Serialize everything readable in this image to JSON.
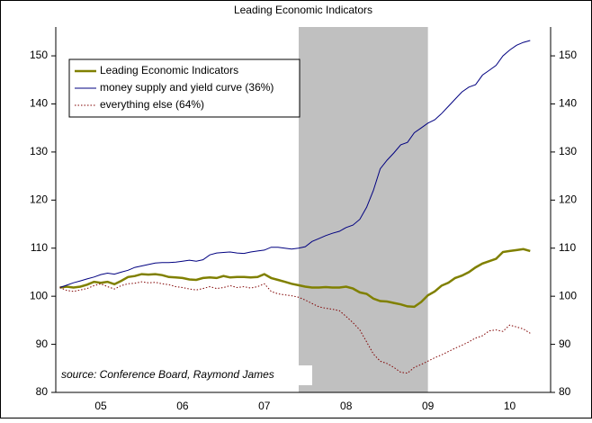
{
  "chart_data": {
    "type": "line",
    "title": "Leading Economic Indicators",
    "source_note": "source: Conference Board, Raymond James",
    "x": [
      2005.0,
      2005.083,
      2005.167,
      2005.25,
      2005.333,
      2005.417,
      2005.5,
      2005.583,
      2005.667,
      2005.75,
      2005.833,
      2005.917,
      2006.0,
      2006.083,
      2006.167,
      2006.25,
      2006.333,
      2006.417,
      2006.5,
      2006.583,
      2006.667,
      2006.75,
      2006.833,
      2006.917,
      2007.0,
      2007.083,
      2007.167,
      2007.25,
      2007.333,
      2007.417,
      2007.5,
      2007.583,
      2007.667,
      2007.75,
      2007.833,
      2007.917,
      2008.0,
      2008.083,
      2008.167,
      2008.25,
      2008.333,
      2008.417,
      2008.5,
      2008.583,
      2008.667,
      2008.75,
      2008.833,
      2008.917,
      2009.0,
      2009.083,
      2009.167,
      2009.25,
      2009.333,
      2009.417,
      2009.5,
      2009.583,
      2009.667,
      2009.75,
      2009.833,
      2009.917,
      2010.0,
      2010.083,
      2010.167,
      2010.25,
      2010.333,
      2010.417,
      2010.5,
      2010.583,
      2010.667,
      2010.75
    ],
    "series": [
      {
        "name": "Leading Economic Indicators",
        "color": "#808000",
        "style": "solid",
        "width": 2.5,
        "values": [
          101.8,
          102.0,
          101.8,
          102.0,
          102.4,
          103.0,
          102.8,
          103.0,
          102.5,
          103.2,
          104.0,
          104.2,
          104.6,
          104.5,
          104.6,
          104.4,
          104.0,
          103.9,
          103.8,
          103.5,
          103.4,
          103.8,
          103.9,
          103.8,
          104.2,
          103.9,
          104.0,
          104.0,
          103.9,
          104.0,
          104.6,
          103.8,
          103.4,
          103.0,
          102.6,
          102.3,
          102.0,
          101.8,
          101.8,
          101.9,
          101.8,
          101.8,
          102.0,
          101.6,
          100.8,
          100.5,
          99.5,
          99.0,
          98.9,
          98.6,
          98.3,
          97.9,
          97.8,
          98.8,
          100.2,
          101.0,
          102.2,
          102.8,
          103.8,
          104.3,
          105.0,
          106.0,
          106.8,
          107.3,
          107.8,
          109.2,
          109.4,
          109.6,
          109.8,
          109.4
        ]
      },
      {
        "name": "money supply and yield curve (36%)",
        "color": "#000080",
        "style": "solid",
        "width": 1,
        "values": [
          101.8,
          102.3,
          102.8,
          103.2,
          103.6,
          104.0,
          104.5,
          104.8,
          104.6,
          105.0,
          105.4,
          106.0,
          106.3,
          106.6,
          106.9,
          107.0,
          107.0,
          107.1,
          107.3,
          107.5,
          107.3,
          107.6,
          108.6,
          109.0,
          109.1,
          109.2,
          109.0,
          108.9,
          109.2,
          109.4,
          109.6,
          110.2,
          110.2,
          110.0,
          109.8,
          110.0,
          110.3,
          111.4,
          112.0,
          112.6,
          113.1,
          113.5,
          114.3,
          114.8,
          116.0,
          118.5,
          122.0,
          126.5,
          128.3,
          129.8,
          131.5,
          132.0,
          134.0,
          135.0,
          136.0,
          136.7,
          138.0,
          139.5,
          141.0,
          142.5,
          143.5,
          144.0,
          146.0,
          147.0,
          148.0,
          150.0,
          151.2,
          152.2,
          152.8,
          153.2
        ]
      },
      {
        "name": "everything else (64%)",
        "color": "#800000",
        "style": "dotted",
        "width": 1,
        "values": [
          101.8,
          101.2,
          101.0,
          101.3,
          101.6,
          102.2,
          102.6,
          102.0,
          101.5,
          102.2,
          102.6,
          102.7,
          103.0,
          102.8,
          102.9,
          102.6,
          102.4,
          102.0,
          101.8,
          101.5,
          101.3,
          101.6,
          102.0,
          101.6,
          101.8,
          102.2,
          101.8,
          102.0,
          101.7,
          102.0,
          102.6,
          101.0,
          100.5,
          100.3,
          100.1,
          99.8,
          99.2,
          98.5,
          97.8,
          97.5,
          97.3,
          97.0,
          95.8,
          94.5,
          93.0,
          90.5,
          88.0,
          86.5,
          86.0,
          85.2,
          84.2,
          84.0,
          85.2,
          85.8,
          86.5,
          87.2,
          87.8,
          88.5,
          89.2,
          89.8,
          90.5,
          91.3,
          91.8,
          92.8,
          93.0,
          92.7,
          94.0,
          93.6,
          93.2,
          92.3
        ]
      }
    ],
    "shaded_band": [
      2007.92,
      2009.5
    ],
    "shade_color": "#c0c0c0",
    "xlim": [
      2004.95,
      2011.0
    ],
    "xticks": [
      {
        "value": 2005.5,
        "label": "05"
      },
      {
        "value": 2006.5,
        "label": "06"
      },
      {
        "value": 2007.5,
        "label": "07"
      },
      {
        "value": 2008.5,
        "label": "08"
      },
      {
        "value": 2009.5,
        "label": "09"
      },
      {
        "value": 2010.5,
        "label": "10"
      }
    ],
    "ylim": [
      80,
      156
    ],
    "yticks": [
      80,
      90,
      100,
      110,
      120,
      130,
      140,
      150
    ],
    "y2": true
  }
}
